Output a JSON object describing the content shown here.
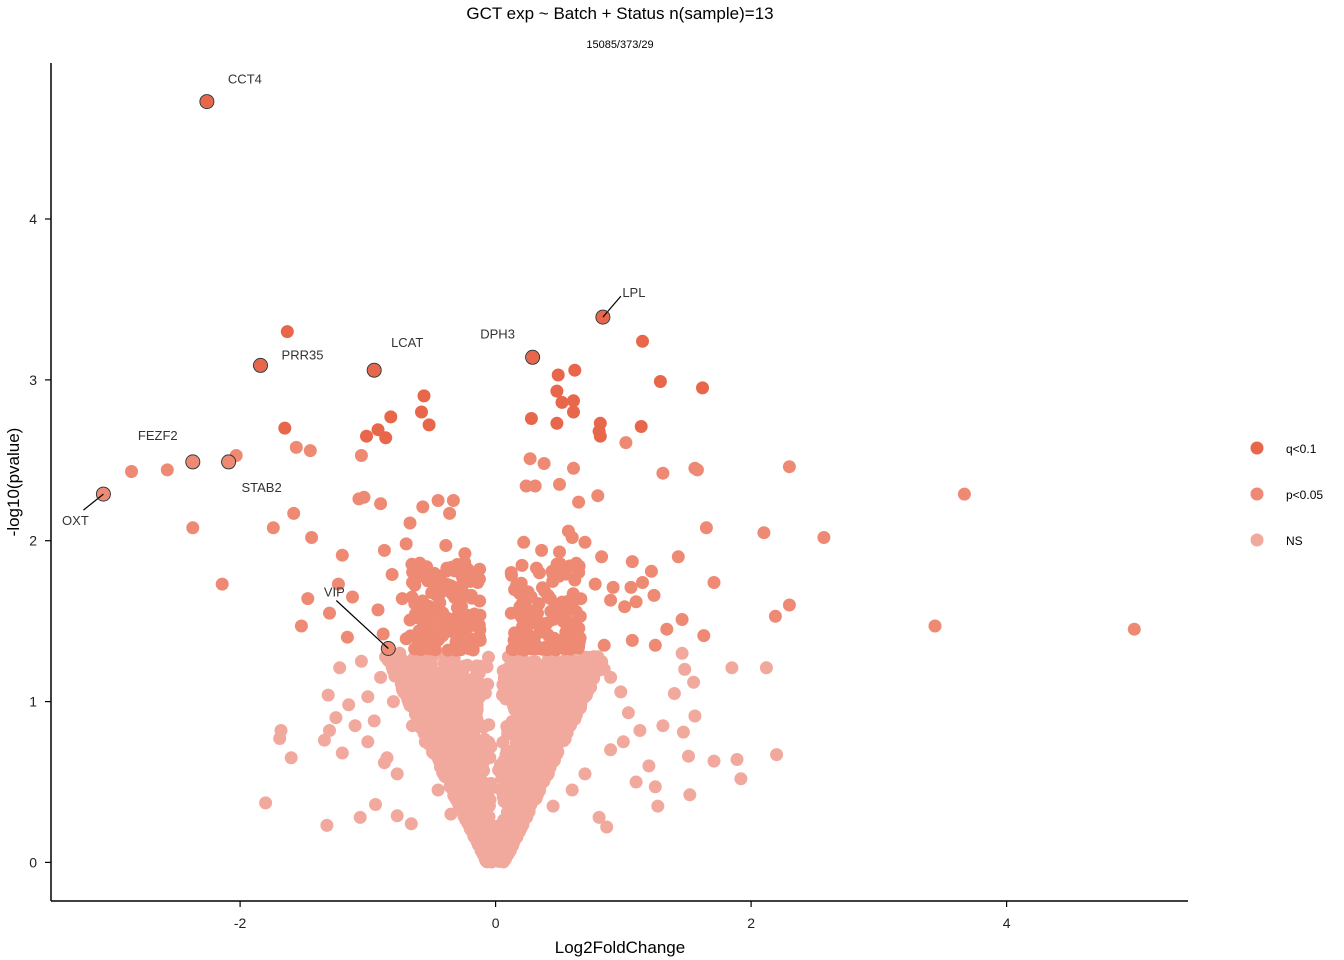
{
  "chart_data": {
    "type": "scatter",
    "title": "GCT exp ~ Batch + Status n(sample)=13",
    "subtitle": "15085/373/29",
    "xlabel": "Log2FoldChange",
    "ylabel": "-log10(pvalue)",
    "xlim": [
      -3.48,
      5.42
    ],
    "ylim": [
      -0.24,
      4.97
    ],
    "xticks": [
      -2,
      0,
      2,
      4
    ],
    "yticks": [
      0,
      1,
      2,
      3,
      4
    ],
    "grid": false,
    "legend_position": "right",
    "colors": {
      "q": "#E8674B",
      "p": "#EE8A74",
      "ns": "#F2A99D"
    },
    "series": [
      {
        "name": "q<0.1",
        "color": "#E8674B",
        "points": [
          [
            -2.26,
            4.73
          ],
          [
            -1.63,
            3.3
          ],
          [
            -1.84,
            3.09
          ],
          [
            -0.95,
            3.06
          ],
          [
            0.29,
            3.14
          ],
          [
            0.84,
            3.39
          ],
          [
            1.15,
            3.24
          ],
          [
            1.62,
            2.95
          ],
          [
            1.29,
            2.99
          ],
          [
            -0.56,
            2.9
          ],
          [
            -0.82,
            2.77
          ],
          [
            -0.92,
            2.69
          ],
          [
            -1.01,
            2.65
          ],
          [
            -0.86,
            2.64
          ],
          [
            -0.58,
            2.8
          ],
          [
            -0.52,
            2.72
          ],
          [
            0.48,
            2.93
          ],
          [
            0.49,
            3.03
          ],
          [
            0.62,
            3.06
          ],
          [
            0.61,
            2.87
          ],
          [
            0.28,
            2.76
          ],
          [
            0.48,
            2.73
          ],
          [
            0.52,
            2.86
          ],
          [
            0.61,
            2.8
          ],
          [
            0.82,
            2.73
          ],
          [
            0.81,
            2.68
          ],
          [
            0.82,
            2.65
          ],
          [
            1.14,
            2.71
          ],
          [
            -1.65,
            2.7
          ]
        ]
      },
      {
        "name": "p<0.05",
        "color": "#EE8A74",
        "points": [
          [
            -2.37,
            2.49
          ],
          [
            -2.09,
            2.49
          ],
          [
            -3.07,
            2.29
          ],
          [
            -2.57,
            2.44
          ],
          [
            -2.85,
            2.43
          ],
          [
            -2.03,
            2.53
          ],
          [
            -1.56,
            2.58
          ],
          [
            -1.45,
            2.56
          ],
          [
            -1.05,
            2.53
          ],
          [
            -1.58,
            2.17
          ],
          [
            -1.74,
            2.08
          ],
          [
            -1.44,
            2.02
          ],
          [
            -2.37,
            2.08
          ],
          [
            -2.14,
            1.73
          ],
          [
            -1.47,
            1.64
          ],
          [
            -1.52,
            1.47
          ],
          [
            -1.3,
            1.55
          ],
          [
            -1.2,
            1.91
          ],
          [
            -1.23,
            1.73
          ],
          [
            -1.07,
            2.26
          ],
          [
            -1.03,
            2.27
          ],
          [
            -0.9,
            2.23
          ],
          [
            -0.87,
            1.94
          ],
          [
            -0.7,
            1.98
          ],
          [
            -0.67,
            2.11
          ],
          [
            -0.57,
            2.21
          ],
          [
            -0.45,
            2.25
          ],
          [
            -0.36,
            2.17
          ],
          [
            -0.33,
            2.25
          ],
          [
            -0.39,
            1.97
          ],
          [
            -0.24,
            1.92
          ],
          [
            -0.81,
            1.79
          ],
          [
            -0.65,
            1.74
          ],
          [
            -0.55,
            1.82
          ],
          [
            -0.3,
            1.83
          ],
          [
            -0.14,
            1.74
          ],
          [
            -1.12,
            1.65
          ],
          [
            -0.92,
            1.57
          ],
          [
            -0.73,
            1.64
          ],
          [
            -0.46,
            1.66
          ],
          [
            -0.35,
            1.72
          ],
          [
            -0.19,
            1.66
          ],
          [
            -0.6,
            1.55
          ],
          [
            -0.42,
            1.43
          ],
          [
            -0.3,
            1.51
          ],
          [
            -0.2,
            1.47
          ],
          [
            -0.12,
            1.38
          ],
          [
            -0.27,
            1.36
          ],
          [
            -1.16,
            1.4
          ],
          [
            -0.88,
            1.42
          ],
          [
            -0.7,
            1.39
          ],
          [
            -0.52,
            1.44
          ],
          [
            0.27,
            2.51
          ],
          [
            0.38,
            2.48
          ],
          [
            0.24,
            2.34
          ],
          [
            0.31,
            2.34
          ],
          [
            0.5,
            2.35
          ],
          [
            0.61,
            2.45
          ],
          [
            0.65,
            2.24
          ],
          [
            0.8,
            2.28
          ],
          [
            1.02,
            2.61
          ],
          [
            1.31,
            2.42
          ],
          [
            1.56,
            2.45
          ],
          [
            1.58,
            2.44
          ],
          [
            2.3,
            2.46
          ],
          [
            3.67,
            2.29
          ],
          [
            2.1,
            2.05
          ],
          [
            2.57,
            2.02
          ],
          [
            1.65,
            2.08
          ],
          [
            1.43,
            1.9
          ],
          [
            0.57,
            2.06
          ],
          [
            0.6,
            2.02
          ],
          [
            0.22,
            1.99
          ],
          [
            0.36,
            1.94
          ],
          [
            0.5,
            1.93
          ],
          [
            0.7,
            1.99
          ],
          [
            0.83,
            1.9
          ],
          [
            1.07,
            1.87
          ],
          [
            1.22,
            1.81
          ],
          [
            1.71,
            1.74
          ],
          [
            0.32,
            1.83
          ],
          [
            0.56,
            1.83
          ],
          [
            0.78,
            1.73
          ],
          [
            0.92,
            1.71
          ],
          [
            1.06,
            1.71
          ],
          [
            1.15,
            1.74
          ],
          [
            1.24,
            1.66
          ],
          [
            0.21,
            1.61
          ],
          [
            0.41,
            1.66
          ],
          [
            0.63,
            1.56
          ],
          [
            0.9,
            1.63
          ],
          [
            1.01,
            1.59
          ],
          [
            1.1,
            1.62
          ],
          [
            2.3,
            1.6
          ],
          [
            2.19,
            1.53
          ],
          [
            3.44,
            1.47
          ],
          [
            5.0,
            1.45
          ],
          [
            1.46,
            1.51
          ],
          [
            1.34,
            1.45
          ],
          [
            1.63,
            1.41
          ],
          [
            0.3,
            1.49
          ],
          [
            0.55,
            1.43
          ],
          [
            0.85,
            1.35
          ],
          [
            1.07,
            1.38
          ],
          [
            1.25,
            1.35
          ],
          [
            0.18,
            1.4
          ],
          [
            0.45,
            1.51
          ],
          [
            -0.84,
            1.33
          ]
        ]
      },
      {
        "name": "NS",
        "color": "#F2A99D",
        "points": [
          [
            -1.8,
            0.37
          ],
          [
            -1.32,
            0.23
          ],
          [
            -1.06,
            0.28
          ],
          [
            -1.6,
            0.65
          ],
          [
            -1.69,
            0.77
          ],
          [
            -1.68,
            0.82
          ],
          [
            -1.34,
            0.76
          ],
          [
            -1.3,
            0.82
          ],
          [
            -1.22,
            1.21
          ],
          [
            -1.31,
            1.04
          ],
          [
            -1.0,
            1.03
          ],
          [
            -1.15,
            0.98
          ],
          [
            -0.95,
            0.88
          ],
          [
            -1.2,
            0.68
          ],
          [
            -0.87,
            0.62
          ],
          [
            -0.77,
            0.55
          ],
          [
            -0.94,
            0.36
          ],
          [
            -0.77,
            0.29
          ],
          [
            -0.66,
            0.24
          ],
          [
            1.92,
            0.52
          ],
          [
            2.2,
            0.67
          ],
          [
            1.89,
            0.64
          ],
          [
            1.71,
            0.63
          ],
          [
            1.52,
            0.42
          ],
          [
            1.27,
            0.35
          ],
          [
            1.25,
            0.47
          ],
          [
            0.87,
            0.22
          ],
          [
            0.81,
            0.28
          ],
          [
            1.51,
            0.66
          ],
          [
            1.47,
            0.81
          ],
          [
            1.56,
            0.91
          ],
          [
            1.85,
            1.21
          ],
          [
            2.12,
            1.21
          ],
          [
            1.55,
            1.12
          ],
          [
            1.4,
            1.05
          ],
          [
            1.48,
            1.2
          ],
          [
            1.46,
            1.3
          ],
          [
            1.31,
            0.85
          ],
          [
            1.13,
            0.82
          ],
          [
            1.04,
            0.93
          ],
          [
            0.98,
            1.06
          ],
          [
            0.9,
            1.15
          ],
          [
            -0.5,
            1.27
          ],
          [
            -0.4,
            1.15
          ],
          [
            -0.3,
            1.1
          ],
          [
            -0.35,
            1.0
          ],
          [
            -0.25,
            0.95
          ],
          [
            -0.45,
            0.9
          ],
          [
            -0.2,
            0.8
          ],
          [
            -0.3,
            0.75
          ],
          [
            -0.15,
            0.7
          ],
          [
            -0.4,
            0.6
          ],
          [
            -0.25,
            0.55
          ],
          [
            -0.1,
            0.5
          ],
          [
            -0.3,
            0.45
          ],
          [
            -0.15,
            0.4
          ],
          [
            -0.05,
            0.35
          ],
          [
            -0.2,
            0.3
          ],
          [
            -0.1,
            0.2
          ],
          [
            -0.05,
            0.12
          ],
          [
            0.0,
            0.05
          ],
          [
            0.05,
            0.1
          ],
          [
            0.1,
            0.18
          ],
          [
            0.15,
            0.3
          ],
          [
            0.25,
            0.4
          ],
          [
            0.2,
            0.5
          ],
          [
            0.35,
            0.55
          ],
          [
            0.3,
            0.65
          ],
          [
            0.45,
            0.7
          ],
          [
            0.4,
            0.8
          ],
          [
            0.55,
            0.85
          ],
          [
            0.5,
            0.95
          ],
          [
            0.65,
            1.0
          ],
          [
            0.6,
            1.1
          ],
          [
            0.75,
            1.15
          ],
          [
            0.7,
            1.25
          ],
          [
            0.85,
            1.2
          ],
          [
            0.35,
            1.2
          ],
          [
            0.2,
            1.25
          ],
          [
            0.1,
            1.15
          ],
          [
            0.15,
            0.95
          ],
          [
            -0.6,
            1.2
          ],
          [
            -0.7,
            1.1
          ],
          [
            -0.8,
            1.0
          ],
          [
            -0.65,
            0.85
          ],
          [
            -0.55,
            0.75
          ],
          [
            -0.45,
            0.45
          ],
          [
            -0.35,
            0.3
          ],
          [
            0.45,
            0.35
          ],
          [
            0.6,
            0.45
          ],
          [
            0.7,
            0.55
          ],
          [
            0.9,
            0.7
          ],
          [
            1.0,
            0.75
          ],
          [
            1.2,
            0.6
          ],
          [
            1.1,
            0.5
          ],
          [
            -1.1,
            0.85
          ],
          [
            -1.25,
            0.9
          ],
          [
            -1.0,
            0.75
          ],
          [
            -0.85,
            0.65
          ],
          [
            -0.9,
            1.15
          ],
          [
            -1.05,
            1.25
          ],
          [
            -0.75,
            1.3
          ]
        ]
      }
    ],
    "labels": [
      {
        "text": "CCT4",
        "x": -2.26,
        "y": 4.73
      },
      {
        "text": "PRR35",
        "x": -1.84,
        "y": 3.09
      },
      {
        "text": "LCAT",
        "x": -0.95,
        "y": 3.06
      },
      {
        "text": "DPH3",
        "x": 0.29,
        "y": 3.14
      },
      {
        "text": "LPL",
        "x": 0.84,
        "y": 3.39
      },
      {
        "text": "FEZF2",
        "x": -2.37,
        "y": 2.49
      },
      {
        "text": "STAB2",
        "x": -2.09,
        "y": 2.49
      },
      {
        "text": "OXT",
        "x": -3.07,
        "y": 2.29
      },
      {
        "text": "VIP",
        "x": -0.84,
        "y": 1.33
      }
    ]
  }
}
